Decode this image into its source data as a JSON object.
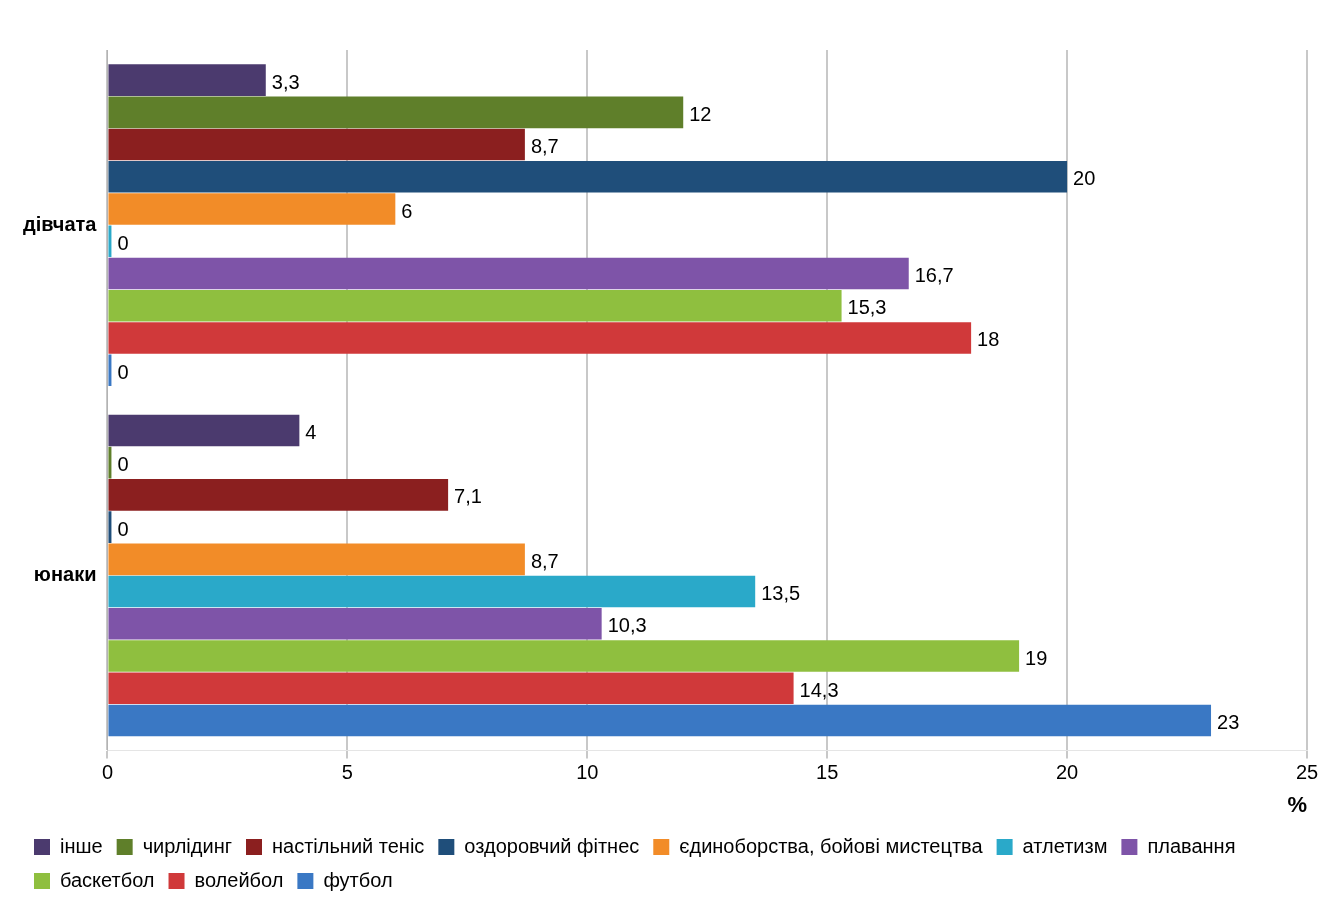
{
  "chart_data": {
    "type": "bar",
    "orientation": "horizontal",
    "categories": [
      "дівчата",
      "юнаки"
    ],
    "xlabel": "%",
    "xlim": [
      0,
      25
    ],
    "xticks": [
      0,
      5,
      10,
      15,
      20,
      25
    ],
    "grid": "x",
    "legend": "bottom",
    "series": [
      {
        "name": "інше",
        "color": "#4b3a6e",
        "values": [
          3.3,
          4
        ],
        "value_labels": [
          "3,3",
          "4"
        ]
      },
      {
        "name": "чирлідинг",
        "color": "#5f7f2a",
        "values": [
          12,
          0
        ],
        "value_labels": [
          "12",
          "0"
        ]
      },
      {
        "name": "настільний теніс",
        "color": "#8b1f1f",
        "values": [
          8.7,
          7.1
        ],
        "value_labels": [
          "8,7",
          "7,1"
        ]
      },
      {
        "name": "оздоровчий фітнес",
        "color": "#1f4e7a",
        "values": [
          20,
          0
        ],
        "value_labels": [
          "20",
          "0"
        ]
      },
      {
        "name": "єдиноборства, бойові мистецтва",
        "color": "#f28c28",
        "values": [
          6,
          8.7
        ],
        "value_labels": [
          "6",
          "8,7"
        ]
      },
      {
        "name": "атлетизм",
        "color": "#2aa9c9",
        "values": [
          0,
          13.5
        ],
        "value_labels": [
          "0",
          "13,5"
        ]
      },
      {
        "name": "плавання",
        "color": "#7e54a8",
        "values": [
          16.7,
          10.3
        ],
        "value_labels": [
          "16,7",
          "10,3"
        ]
      },
      {
        "name": "баскетбол",
        "color": "#8fbf3f",
        "values": [
          15.3,
          19
        ],
        "value_labels": [
          "15,3",
          "19"
        ]
      },
      {
        "name": "волейбол",
        "color": "#d0393a",
        "values": [
          18,
          14.3
        ],
        "value_labels": [
          "18",
          "14,3"
        ]
      },
      {
        "name": "футбол",
        "color": "#3a78c4",
        "values": [
          0,
          23
        ],
        "value_labels": [
          "0",
          "23"
        ]
      }
    ]
  }
}
